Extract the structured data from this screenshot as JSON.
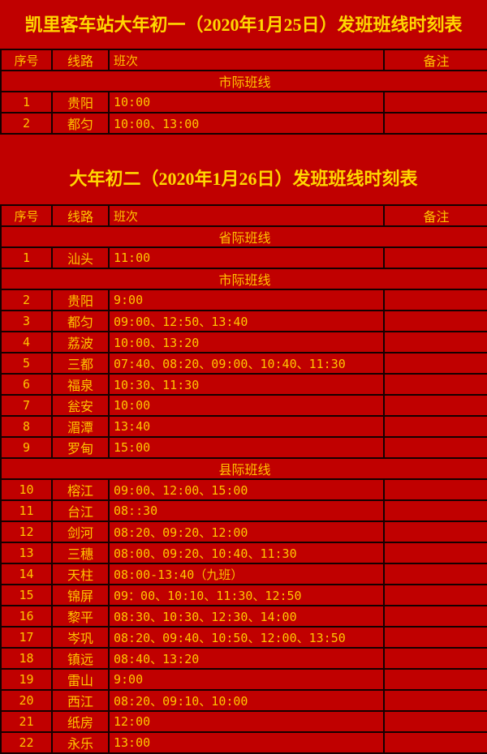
{
  "theme": {
    "background": "#C00000",
    "border": "#150000",
    "text": "#FFC400",
    "title_text": "#FFD700"
  },
  "tables": [
    {
      "id": "day1",
      "title": "凯里客车站大年初一（2020年1月25日）发班班线时刻表",
      "headers": [
        "序号",
        "线路",
        "班次",
        "备注"
      ],
      "sections": [
        {
          "label": "市际班线",
          "rows": [
            {
              "no": "1",
              "route": "贵阳",
              "times": "10:00",
              "note": ""
            },
            {
              "no": "2",
              "route": "都匀",
              "times": "10:00、13:00",
              "note": ""
            }
          ]
        }
      ]
    },
    {
      "id": "day2",
      "title": "大年初二（2020年1月26日）发班班线时刻表",
      "headers": [
        "序号",
        "线路",
        "班次",
        "备注"
      ],
      "sections": [
        {
          "label": "省际班线",
          "rows": [
            {
              "no": "1",
              "route": "汕头",
              "times": "11:00",
              "note": ""
            }
          ]
        },
        {
          "label": "市际班线",
          "rows": [
            {
              "no": "2",
              "route": "贵阳",
              "times": "9:00",
              "note": ""
            },
            {
              "no": "3",
              "route": "都匀",
              "times": "09:00、12:50、13:40",
              "note": ""
            },
            {
              "no": "4",
              "route": "荔波",
              "times": "10:00、13:20",
              "note": ""
            },
            {
              "no": "5",
              "route": "三都",
              "times": "07:40、08:20、09:00、10:40、11:30",
              "note": ""
            },
            {
              "no": "6",
              "route": "福泉",
              "times": "10:30、11:30",
              "note": ""
            },
            {
              "no": "7",
              "route": "瓮安",
              "times": "10:00",
              "note": ""
            },
            {
              "no": "8",
              "route": "湄潭",
              "times": "13:40",
              "note": ""
            },
            {
              "no": "9",
              "route": "罗甸",
              "times": "15:00",
              "note": ""
            }
          ]
        },
        {
          "label": "县际班线",
          "rows": [
            {
              "no": "10",
              "route": "榕江",
              "times": "09:00、12:00、15:00",
              "note": ""
            },
            {
              "no": "11",
              "route": "台江",
              "times": "08::30",
              "note": ""
            },
            {
              "no": "12",
              "route": "剑河",
              "times": "08:20、09:20、12:00",
              "note": ""
            },
            {
              "no": "13",
              "route": "三穗",
              "times": "08:00、09:20、10:40、11:30",
              "note": ""
            },
            {
              "no": "14",
              "route": "天柱",
              "times": "08:00-13:40（九班）",
              "note": ""
            },
            {
              "no": "15",
              "route": "锦屏",
              "times": "09：00、10:10、11:30、12:50",
              "note": ""
            },
            {
              "no": "16",
              "route": "黎平",
              "times": "08:30、10:30、12:30、14:00",
              "note": ""
            },
            {
              "no": "17",
              "route": "岑巩",
              "times": "08:20、09:40、10:50、12:00、13:50",
              "note": ""
            },
            {
              "no": "18",
              "route": "镇远",
              "times": "08:40、13:20",
              "note": ""
            },
            {
              "no": "19",
              "route": "雷山",
              "times": "9:00",
              "note": ""
            },
            {
              "no": "20",
              "route": "西江",
              "times": "08:20、09:10、10:00",
              "note": ""
            },
            {
              "no": "21",
              "route": "纸房",
              "times": "12:00",
              "note": ""
            },
            {
              "no": "22",
              "route": "永乐",
              "times": "13:00",
              "note": ""
            }
          ]
        }
      ]
    }
  ]
}
